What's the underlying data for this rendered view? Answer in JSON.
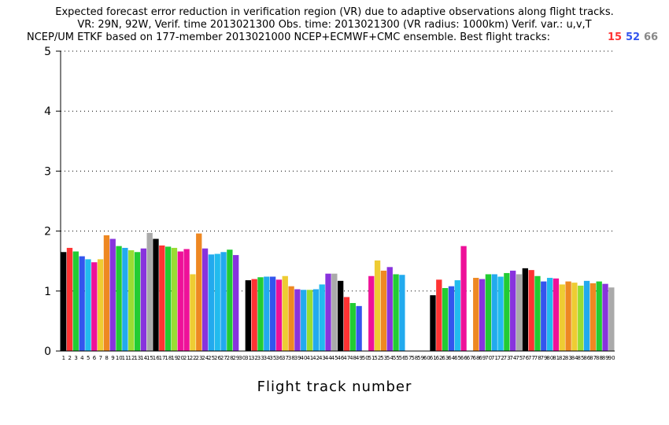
{
  "chart_data": {
    "type": "bar",
    "title_lines": [
      "Expected forecast error reduction in verification region (VR) due to adaptive observations along flight tracks.",
      "VR: 29N, 92W, Verif. time 2013021300 Obs. time: 2013021300 (VR radius: 1000km)  Verif. var.: u,v,T",
      "NCEP/UM ETKF based on 177-member 2013021000 NCEP+ECMWF+CMC ensemble. Best flight tracks:"
    ],
    "best_tracks": [
      {
        "label": "15",
        "color": "#ff3333"
      },
      {
        "label": "52",
        "color": "#3355ee"
      },
      {
        "label": "66",
        "color": "#888888"
      }
    ],
    "xlabel": "Flight track number",
    "ylabel": "",
    "ylim": [
      0,
      5
    ],
    "yticks": [
      "0",
      "1",
      "2",
      "3",
      "4",
      "5"
    ],
    "grid": true,
    "categories": [
      "1",
      "2",
      "3",
      "4",
      "5",
      "6",
      "7",
      "8",
      "9",
      "10",
      "11",
      "12",
      "13",
      "14",
      "15",
      "16",
      "17",
      "18",
      "19",
      "20",
      "21",
      "22",
      "23",
      "24",
      "25",
      "26",
      "27",
      "28",
      "29",
      "30",
      "31",
      "32",
      "33",
      "34",
      "35",
      "36",
      "37",
      "38",
      "39",
      "40",
      "41",
      "42",
      "43",
      "44",
      "45",
      "46",
      "47",
      "48",
      "49",
      "50",
      "51",
      "52",
      "53",
      "54",
      "55",
      "56",
      "57",
      "58",
      "59",
      "60",
      "61",
      "62",
      "63",
      "64",
      "65",
      "66",
      "67",
      "68",
      "69",
      "70",
      "71",
      "72",
      "73",
      "74",
      "75",
      "76",
      "77",
      "78",
      "79",
      "80",
      "81",
      "82",
      "83",
      "84",
      "85",
      "86",
      "87",
      "88",
      "89",
      "90"
    ],
    "values": [
      1.65,
      1.72,
      1.66,
      1.58,
      1.53,
      1.48,
      1.53,
      1.93,
      1.87,
      1.75,
      1.72,
      1.68,
      1.65,
      1.71,
      1.97,
      1.87,
      1.76,
      1.74,
      1.72,
      1.66,
      1.7,
      1.28,
      1.96,
      1.71,
      1.61,
      1.62,
      1.65,
      1.69,
      1.6,
      0,
      1.18,
      1.2,
      1.23,
      1.24,
      1.24,
      1.19,
      1.25,
      1.08,
      1.03,
      1.02,
      1.02,
      1.03,
      1.11,
      1.29,
      1.29,
      1.17,
      0.9,
      0.8,
      0.75,
      0,
      1.25,
      1.51,
      1.34,
      1.4,
      1.28,
      1.27,
      0,
      0,
      0,
      0,
      0.93,
      1.19,
      1.05,
      1.08,
      1.18,
      1.75,
      0,
      1.22,
      1.2,
      1.28,
      1.28,
      1.24,
      1.3,
      1.34,
      1.28,
      1.38,
      1.35,
      1.25,
      1.16,
      1.22,
      1.21,
      1.11,
      1.16,
      1.14,
      1.09,
      1.17,
      1.13,
      1.16,
      1.12,
      1.06
    ],
    "bar_colors": [
      "#000000",
      "#ff3333",
      "#22cc33",
      "#3355ee",
      "#22bbee",
      "#ee1199",
      "#eecc33",
      "#ee8822",
      "#8833dd",
      "#22cc33",
      "#22aaee",
      "#99dd33",
      "#22cc33",
      "#8833dd",
      "#aaaaaa",
      "#000000",
      "#ff3333",
      "#22cc33",
      "#99dd33",
      "#ee1199",
      "#ee1199",
      "#eecc33",
      "#ee8822",
      "#8833dd",
      "#22aaee",
      "#22bbee",
      "#22aaee",
      "#22cc33",
      "#8833dd",
      "#ffffff",
      "#000000",
      "#ff3333",
      "#22cc33",
      "#22aaee",
      "#3355ee",
      "#ee1199",
      "#eecc33",
      "#ee8822",
      "#8833dd",
      "#22aaee",
      "#99dd33",
      "#22aaee",
      "#22bbee",
      "#8833dd",
      "#aaaaaa",
      "#000000",
      "#ff3333",
      "#22cc33",
      "#3355ee",
      "#ffffff",
      "#ee1199",
      "#eecc33",
      "#ee8822",
      "#8833dd",
      "#22cc33",
      "#22aaee",
      "#ffffff",
      "#ffffff",
      "#ffffff",
      "#ffffff",
      "#000000",
      "#ff3333",
      "#22cc33",
      "#3355ee",
      "#22bbee",
      "#ee1199",
      "#ffffff",
      "#ee8822",
      "#8833dd",
      "#22cc33",
      "#22aaee",
      "#22bbee",
      "#22cc33",
      "#8833dd",
      "#aaaaaa",
      "#000000",
      "#ff3333",
      "#22cc33",
      "#3355ee",
      "#22bbee",
      "#ee1199",
      "#eecc33",
      "#ee8822",
      "#eecc33",
      "#99dd33",
      "#22aaee",
      "#ee8822",
      "#22cc33",
      "#8833dd",
      "#aaaaaa"
    ]
  }
}
